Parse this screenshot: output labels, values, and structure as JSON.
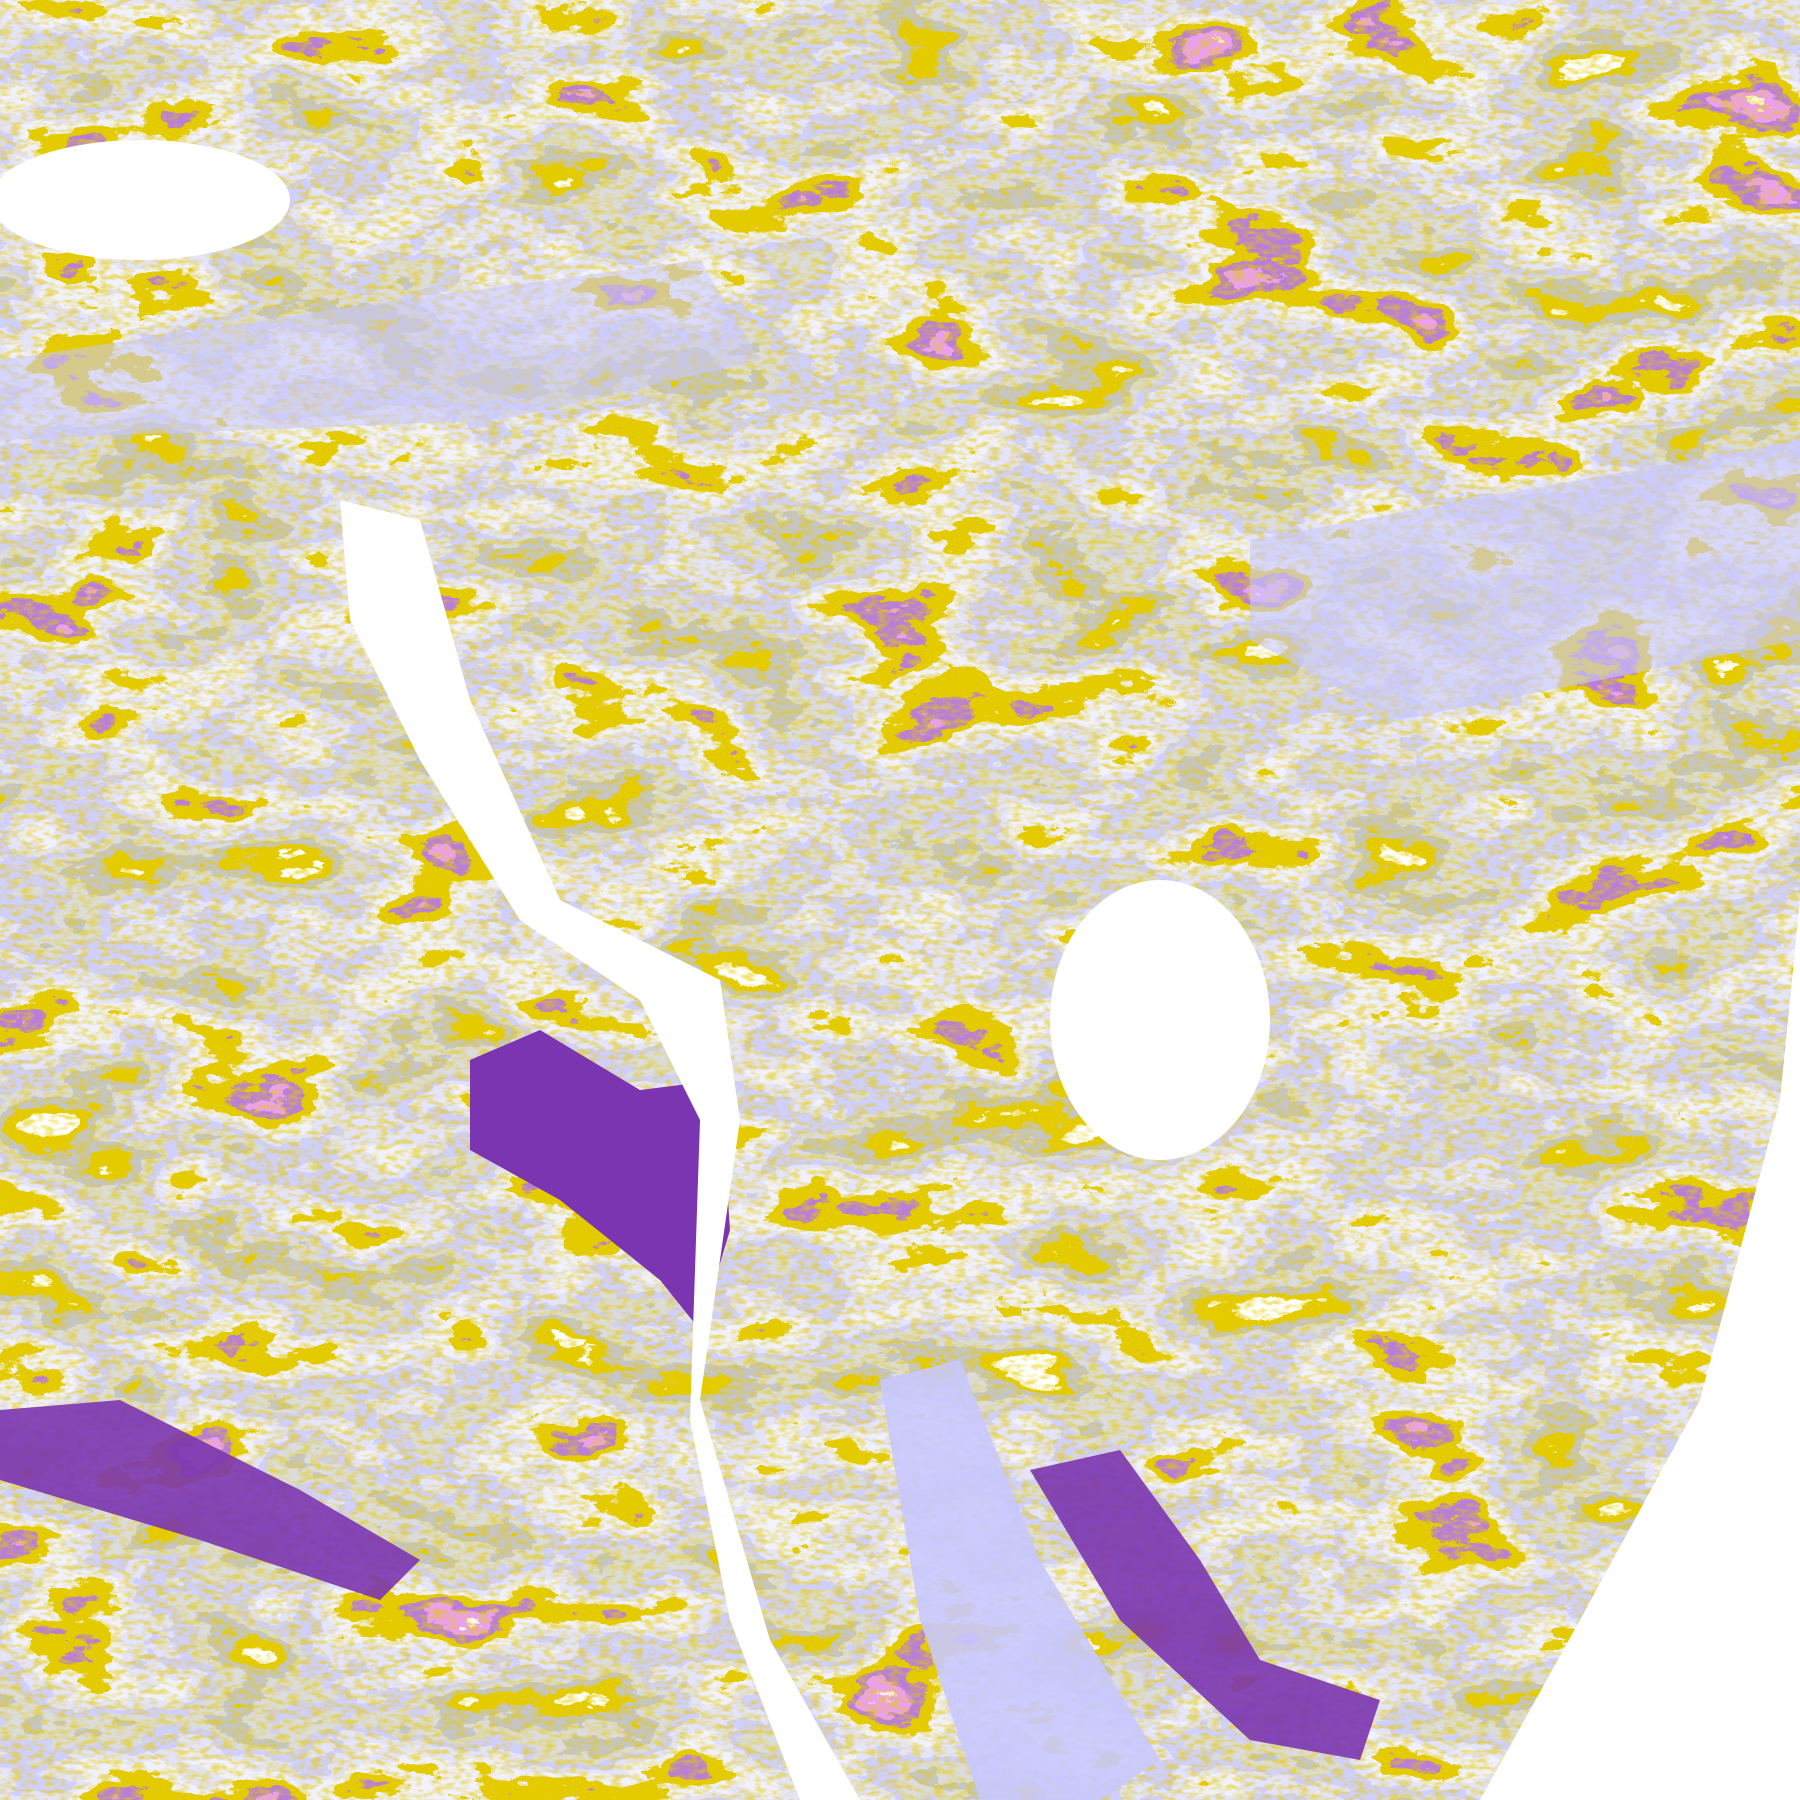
{
  "image": {
    "kind": "false-color satellite cloud classification",
    "palette": {
      "clear": "#ffffff",
      "gold": "#c89a00",
      "bright_gold": "#e0b000",
      "purple": "#7b35b0",
      "magenta": "#d45ae0",
      "lavender": "#a0a0ff",
      "light_lavender": "#c8c8ff",
      "pale_lavender": "#e8e8ff",
      "gray": "#909090",
      "light_gray": "#b8b8b8"
    }
  }
}
